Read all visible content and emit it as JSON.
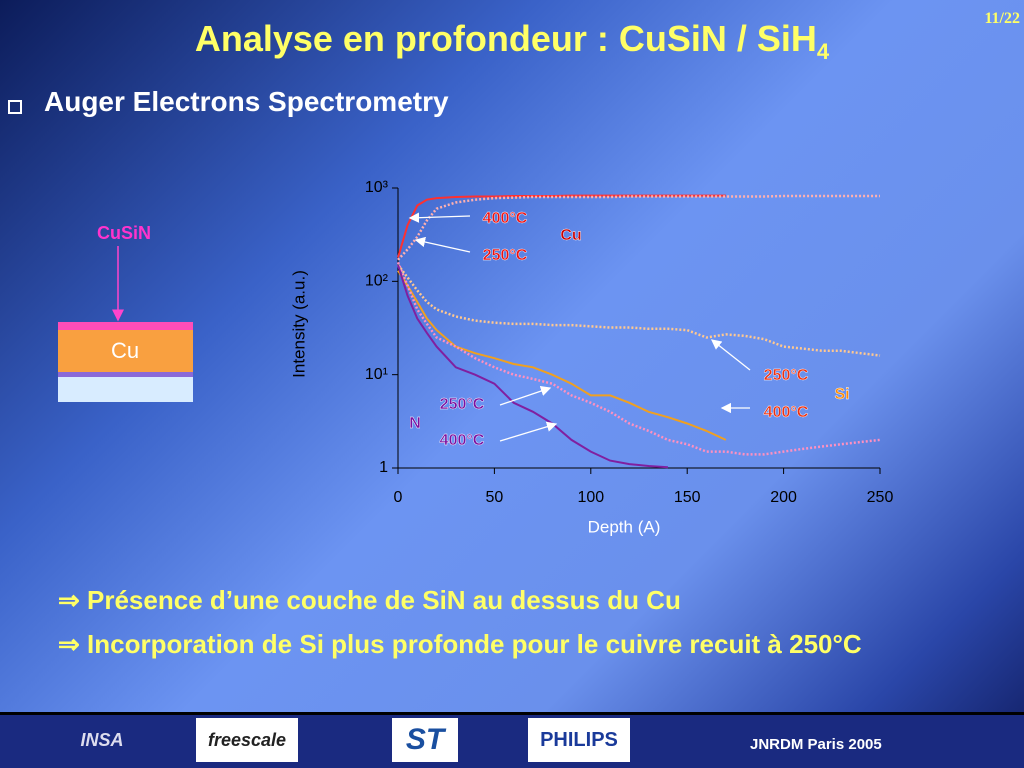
{
  "page_number": "11/22",
  "title": "Analyse en profondeur : CuSiN / SiH",
  "title_sub": "4",
  "bullet": "Auger Electrons Spectrometry",
  "diagram": {
    "layer_label": "CuSiN",
    "substrate_label": "Cu"
  },
  "chart_data": {
    "type": "line",
    "x_label": "Depth (A)",
    "y_label": "Intensity (a.u.)",
    "x": [
      0,
      5,
      10,
      15,
      20,
      30,
      40,
      50,
      60,
      70,
      80,
      90,
      100,
      110,
      120,
      130,
      140,
      150,
      160,
      170,
      180,
      190,
      200,
      210,
      220,
      230,
      240,
      250
    ],
    "xlim": [
      0,
      250
    ],
    "xticks": [
      0,
      50,
      100,
      150,
      200,
      250
    ],
    "ylim": [
      1,
      1000
    ],
    "yticks": [
      1,
      {
        "value": 10,
        "label": "10¹"
      },
      {
        "value": 100,
        "label": "10²"
      },
      {
        "value": 1000,
        "label": "10³"
      }
    ],
    "log_scale_y": true,
    "series": [
      {
        "color": "#ff3030",
        "dashed": false,
        "values": [
          180,
          400,
          650,
          750,
          780,
          800,
          810,
          810,
          820,
          820,
          820,
          830,
          830,
          830,
          830,
          830,
          830,
          830,
          830,
          830,
          null,
          null,
          null,
          null,
          null,
          null,
          null,
          null
        ]
      },
      {
        "color": "#ffb0b0",
        "dashed": true,
        "values": [
          170,
          220,
          300,
          450,
          600,
          700,
          750,
          780,
          790,
          800,
          800,
          800,
          800,
          800,
          810,
          810,
          810,
          810,
          810,
          810,
          810,
          810,
          820,
          820,
          820,
          820,
          820,
          820
        ]
      },
      {
        "color": "#ffc890",
        "dashed": true,
        "values": [
          150,
          110,
          80,
          60,
          50,
          42,
          38,
          36,
          35,
          35,
          34,
          34,
          33,
          32,
          32,
          31,
          31,
          30,
          25,
          27,
          26,
          24,
          20,
          19,
          18,
          18,
          17,
          16
        ]
      },
      {
        "color": "#f0a020",
        "dashed": false,
        "values": [
          130,
          90,
          60,
          40,
          30,
          20,
          17,
          15,
          13,
          12,
          10,
          8,
          6,
          6,
          5,
          4,
          3.5,
          3,
          2.5,
          2,
          null,
          null,
          null,
          null,
          null,
          null,
          null,
          null
        ]
      },
      {
        "color": "#ff90c0",
        "dashed": true,
        "values": [
          160,
          90,
          50,
          35,
          25,
          20,
          15,
          12,
          10,
          9,
          8,
          6,
          5,
          4,
          3,
          2.5,
          2,
          1.8,
          1.5,
          1.5,
          1.4,
          1.4,
          1.5,
          1.6,
          1.7,
          1.8,
          1.9,
          2
        ]
      },
      {
        "color": "#8020a0",
        "dashed": false,
        "values": [
          150,
          70,
          40,
          28,
          20,
          12,
          10,
          8,
          5,
          4,
          3,
          2,
          1.5,
          1.2,
          1.1,
          1.05,
          1.02,
          null,
          null,
          null,
          null,
          null,
          null,
          null,
          null,
          null,
          null,
          null
        ]
      }
    ],
    "annotations": [
      "400°C",
      "250°C",
      "Cu",
      "250°C",
      "400°C",
      "Si",
      "250°C",
      "400°C",
      "N"
    ]
  },
  "conclusions": [
    "⇒ Présence d’une couche de SiN au dessus du Cu",
    "⇒ Incorporation de Si plus profonde pour le cuivre recuit à 250°C"
  ],
  "footer": {
    "logos": [
      "INSA",
      "freescale",
      "ST",
      "PHILIPS"
    ],
    "event": "JNRDM Paris 2005"
  }
}
